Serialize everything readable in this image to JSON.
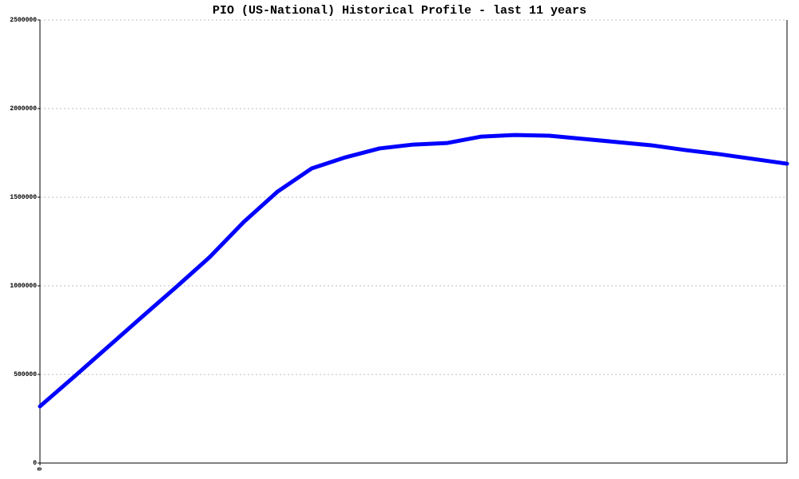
{
  "chart_data": {
    "type": "line",
    "title": "PIO (US-National) Historical Profile - last 11 years",
    "x": [
      0,
      1,
      2,
      3,
      4,
      5,
      6,
      7,
      8,
      9,
      10,
      11,
      12,
      13,
      14,
      15,
      16,
      17,
      18,
      19,
      20,
      21,
      22
    ],
    "xlim": [
      0,
      22
    ],
    "xticks": [
      0
    ],
    "series": [
      {
        "color": "#0000ff",
        "values": [
          320000,
          486000,
          655000,
          824000,
          991000,
          1162000,
          1360000,
          1532000,
          1662000,
          1725000,
          1775000,
          1797000,
          1806000,
          1842000,
          1851000,
          1847000,
          1829000,
          1811000,
          1793000,
          1766000,
          1743000,
          1716000,
          1689000
        ]
      }
    ],
    "ylim": [
      0,
      2500000
    ],
    "yticks": [
      0,
      500000,
      1000000,
      1500000,
      2000000,
      2500000
    ],
    "grid": true
  }
}
